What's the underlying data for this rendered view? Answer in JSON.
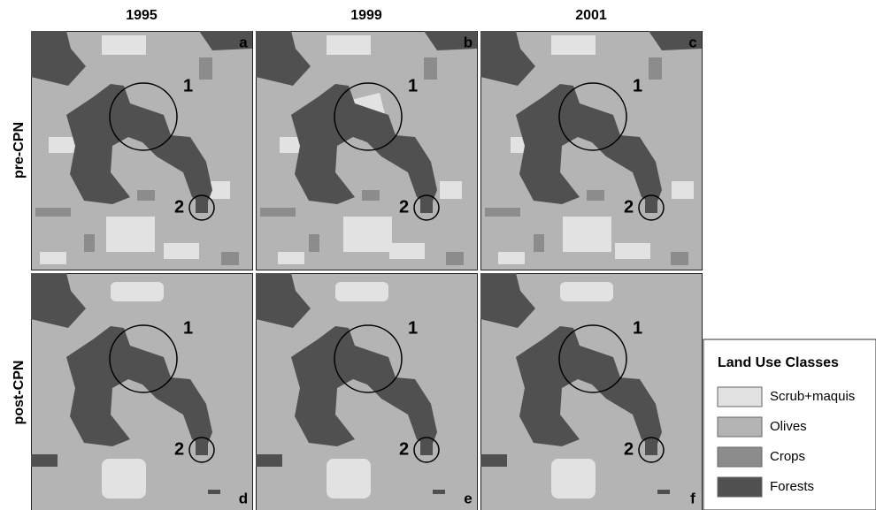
{
  "column_headers": [
    "1995",
    "1999",
    "2001"
  ],
  "row_labels": [
    "pre-CPN",
    "post-CPN"
  ],
  "panels": [
    {
      "letter": "a",
      "sites": [
        "1",
        "2"
      ]
    },
    {
      "letter": "b",
      "sites": [
        "1",
        "2"
      ]
    },
    {
      "letter": "c",
      "sites": [
        "1",
        "2"
      ]
    },
    {
      "letter": "d",
      "sites": [
        "1",
        "2"
      ]
    },
    {
      "letter": "e",
      "sites": [
        "1",
        "2"
      ]
    },
    {
      "letter": "f",
      "sites": [
        "1",
        "2"
      ]
    }
  ],
  "legend": {
    "title": "Land Use Classes",
    "classes": [
      {
        "label": "Scrub+maquis",
        "color": "#e2e2e2"
      },
      {
        "label": "Olives",
        "color": "#b4b4b4"
      },
      {
        "label": "Crops",
        "color": "#8c8c8c"
      },
      {
        "label": "Forests",
        "color": "#505050"
      }
    ]
  }
}
